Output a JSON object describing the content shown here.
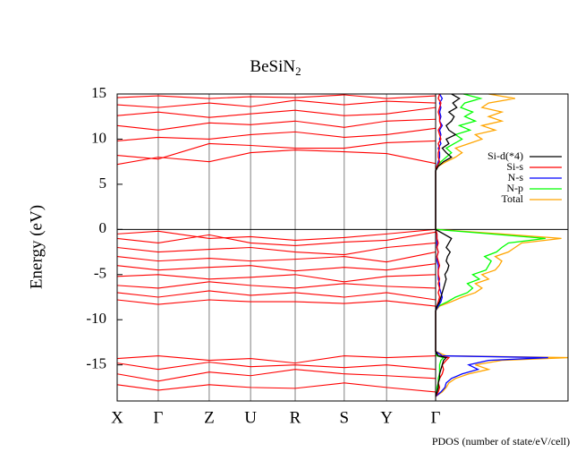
{
  "chart_data": [
    {
      "type": "band",
      "title": "BeSiN",
      "title_subscript": "2",
      "ylabel": "Energy (eV)",
      "categories": [
        "X",
        "Γ",
        "Z",
        "U",
        "R",
        "S",
        "Y",
        "Γ"
      ],
      "x": [
        0,
        0.129,
        0.289,
        0.419,
        0.559,
        0.713,
        0.846,
        1
      ],
      "xlim": [
        0,
        1
      ],
      "ylim": [
        -19,
        15
      ],
      "yticks": [
        15,
        10,
        5,
        0,
        -5,
        -10,
        -15
      ],
      "hline": 0,
      "color": "#ff0000",
      "grid_color": "#808080",
      "bands": [
        [
          7.2,
          8.0,
          7.5,
          8.5,
          8.8,
          8.6,
          8.4,
          7.3
        ],
        [
          8.2,
          7.8,
          9.5,
          9.3,
          9.0,
          9.0,
          9.6,
          9.8
        ],
        [
          9.8,
          10.2,
          10.0,
          10.5,
          10.8,
          10.2,
          10.5,
          11.2
        ],
        [
          11.5,
          11.0,
          11.8,
          11.6,
          12.0,
          11.3,
          12.0,
          12.2
        ],
        [
          12.6,
          13.0,
          12.4,
          12.8,
          13.2,
          12.6,
          12.8,
          13.5
        ],
        [
          13.8,
          13.5,
          14.0,
          13.6,
          14.3,
          13.8,
          14.2,
          14.0
        ],
        [
          14.6,
          14.8,
          14.5,
          14.7,
          14.6,
          14.9,
          14.5,
          14.8
        ],
        [
          -0.5,
          -0.2,
          -1.0,
          -0.8,
          -1.2,
          -0.9,
          -0.5,
          0
        ],
        [
          -1.0,
          -1.5,
          -0.6,
          -1.5,
          -1.8,
          -1.4,
          -1.2,
          -0.3
        ],
        [
          -2.0,
          -2.5,
          -2.2,
          -2.0,
          -2.5,
          -2.8,
          -2.0,
          -1.5
        ],
        [
          -3.0,
          -3.5,
          -3.2,
          -3.5,
          -3.3,
          -3.0,
          -3.6,
          -2.5
        ],
        [
          -4.0,
          -4.5,
          -4.2,
          -4.0,
          -4.6,
          -4.2,
          -4.5,
          -3.8
        ],
        [
          -5.2,
          -5.0,
          -5.5,
          -5.3,
          -5.0,
          -5.8,
          -5.2,
          -5.0
        ],
        [
          -6.2,
          -6.5,
          -5.8,
          -6.2,
          -6.5,
          -6.0,
          -6.3,
          -6.5
        ],
        [
          -7.0,
          -7.5,
          -6.8,
          -7.3,
          -7.0,
          -7.5,
          -7.0,
          -7.8
        ],
        [
          -7.8,
          -8.3,
          -7.8,
          -8.0,
          -8.0,
          -8.2,
          -7.9,
          -8.5
        ],
        [
          -14.3,
          -14.0,
          -14.5,
          -14.3,
          -14.8,
          -14.0,
          -14.2,
          -14.0
        ],
        [
          -14.8,
          -15.5,
          -14.7,
          -15.2,
          -15.0,
          -15.3,
          -15.0,
          -15.5
        ],
        [
          -16.0,
          -16.8,
          -15.8,
          -16.2,
          -15.5,
          -16.0,
          -16.2,
          -16.5
        ],
        [
          -17.2,
          -17.8,
          -17.2,
          -17.5,
          -17.6,
          -17.0,
          -17.5,
          -18.0
        ]
      ]
    },
    {
      "type": "pdos",
      "xlabel": "PDOS (number of state/eV/cell)",
      "xlim": [
        0,
        10
      ],
      "energy": [
        -18.5,
        -18,
        -17.5,
        -17,
        -16.5,
        -16,
        -15.5,
        -15,
        -14.5,
        -14.2,
        -14,
        -13.5,
        -9,
        -8.5,
        -8,
        -7.5,
        -7,
        -6.5,
        -6,
        -5.5,
        -5,
        -4.5,
        -4,
        -3.5,
        -3,
        -2.5,
        -2,
        -1.5,
        -1,
        -0.5,
        0,
        0.5,
        6.5,
        7,
        7.5,
        8,
        8.5,
        9,
        9.5,
        10,
        10.5,
        11,
        11.5,
        12,
        12.5,
        13,
        13.5,
        14,
        14.5,
        15
      ],
      "series": [
        {
          "name": "Si-d(*4)",
          "color": "#000000",
          "values": [
            0,
            0.1,
            0.2,
            0.2,
            0.3,
            0.3,
            0.4,
            0.5,
            0.6,
            0.8,
            0.2,
            0,
            0,
            0.1,
            0.3,
            0.4,
            0.5,
            0.6,
            0.7,
            0.8,
            0.7,
            0.9,
            1.0,
            0.8,
            0.9,
            1.1,
            0.8,
            1.0,
            1.2,
            0.6,
            0,
            0,
            0,
            0.2,
            0.6,
            1.2,
            0.8,
            0.5,
            1.0,
            0.8,
            1.5,
            1.0,
            0.8,
            1.2,
            1.4,
            1.0,
            1.6,
            1.3,
            1.8,
            1.2
          ]
        },
        {
          "name": "Si-s",
          "color": "#ff0000",
          "values": [
            0,
            0.2,
            0.3,
            0.2,
            0.3,
            0.5,
            0.6,
            0.5,
            0.8,
            1.0,
            0.2,
            0,
            0,
            0.1,
            0.2,
            0.3,
            0.2,
            0.3,
            0.2,
            0.3,
            0.2,
            0.2,
            0.3,
            0.2,
            0.1,
            0.2,
            0.1,
            0.2,
            0.1,
            0.1,
            0,
            0,
            0,
            0.1,
            0.3,
            0.2,
            0.2,
            0.3,
            0.2,
            0.4,
            0.3,
            0.2,
            0.4,
            0.3,
            0.3,
            0.2,
            0.3,
            0.4,
            0.2,
            0.3
          ]
        },
        {
          "name": "N-s",
          "color": "#0000ff",
          "values": [
            0,
            0.4,
            0.7,
            0.8,
            1.2,
            2.0,
            3.2,
            2.5,
            4.0,
            8.5,
            0.5,
            0,
            0,
            0.2,
            0.4,
            0.5,
            0.4,
            0.3,
            0.3,
            0.2,
            0.2,
            0.2,
            0.2,
            0.1,
            0.1,
            0.2,
            0.1,
            0.1,
            0.1,
            0.1,
            0,
            0,
            0,
            0.1,
            0.2,
            0.3,
            0.3,
            0.2,
            0.4,
            0.3,
            0.4,
            0.3,
            0.5,
            0.3,
            0.4,
            0.3,
            0.4,
            0.3,
            0.5,
            0.3
          ]
        },
        {
          "name": "N-p",
          "color": "#00ff00",
          "values": [
            0,
            0.1,
            0.1,
            0.2,
            0.2,
            0.3,
            0.3,
            0.3,
            0.4,
            0.6,
            0.1,
            0,
            0,
            0.2,
            0.9,
            1.5,
            2.4,
            2.8,
            2.4,
            3.3,
            2.8,
            3.8,
            4.0,
            4.2,
            3.7,
            4.6,
            5.0,
            5.5,
            8.3,
            4.2,
            0,
            0,
            0,
            0.1,
            0.4,
            0.8,
            1.2,
            0.8,
            1.4,
            2.0,
            1.5,
            2.6,
            1.8,
            3.0,
            2.2,
            2.8,
            1.9,
            2.2,
            3.4,
            2.1
          ]
        },
        {
          "name": "Total",
          "color": "#ffa500",
          "values": [
            0,
            0.5,
            0.8,
            1.0,
            1.5,
            2.5,
            4.0,
            3.0,
            5.0,
            10.0,
            0.8,
            0,
            0,
            0.3,
            1.2,
            2.0,
            3.0,
            3.5,
            3.0,
            4.0,
            3.5,
            4.5,
            4.8,
            5.0,
            4.5,
            5.5,
            6.0,
            6.5,
            9.5,
            5.0,
            0,
            0,
            0,
            0.2,
            0.8,
            1.5,
            2.0,
            1.5,
            2.5,
            3.5,
            3.0,
            4.5,
            3.5,
            5.0,
            4.0,
            5.0,
            3.5,
            4.0,
            6.0,
            4.0
          ]
        }
      ]
    }
  ]
}
